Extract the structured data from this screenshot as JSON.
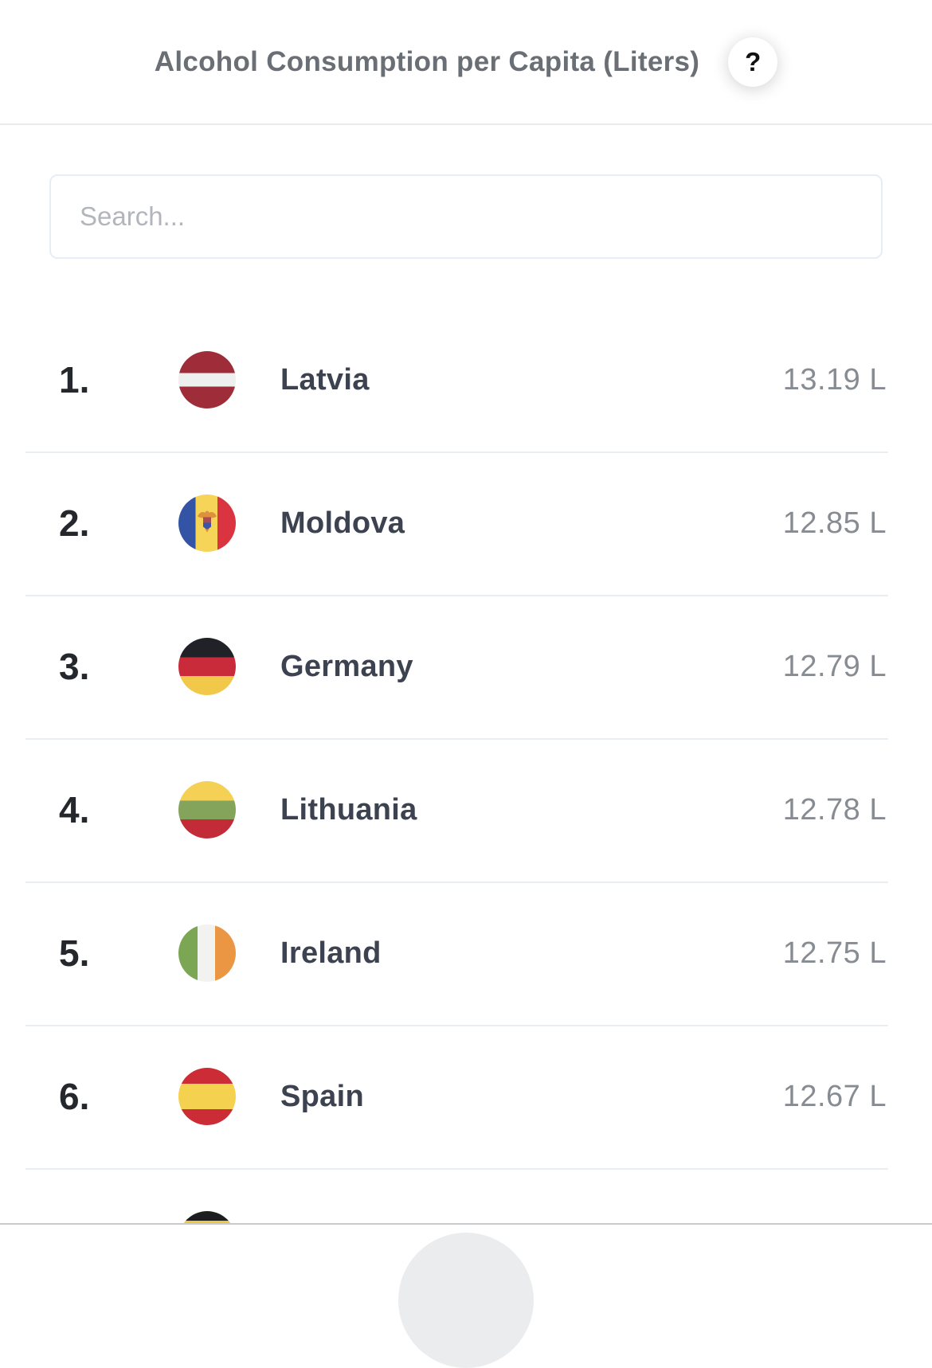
{
  "header": {
    "title": "Alcohol Consumption per Capita (Liters)",
    "help_label": "?"
  },
  "search": {
    "placeholder": "Search...",
    "value": ""
  },
  "rows": [
    {
      "rank": "1.",
      "country": "Latvia",
      "value": "13.19 L",
      "flag": {
        "name": "latvia-flag-icon",
        "type": "h",
        "stripes": [
          {
            "color": "#9e2d39",
            "to": 38
          },
          {
            "color": "#eef0ef",
            "to": 62
          },
          {
            "color": "#9e2d39",
            "to": 100
          }
        ]
      }
    },
    {
      "rank": "2.",
      "country": "Moldova",
      "value": "12.85 L",
      "flag": {
        "name": "moldova-flag-icon",
        "type": "v",
        "emblem": "moldova-eagle",
        "stripes": [
          {
            "color": "#3353a5",
            "to": 30
          },
          {
            "color": "#f6d457",
            "to": 68
          },
          {
            "color": "#d93440",
            "to": 100
          }
        ]
      }
    },
    {
      "rank": "3.",
      "country": "Germany",
      "value": "12.79 L",
      "flag": {
        "name": "germany-flag-icon",
        "type": "h",
        "stripes": [
          {
            "color": "#202227",
            "to": 34
          },
          {
            "color": "#ca2b3a",
            "to": 67
          },
          {
            "color": "#f2c84b",
            "to": 100
          }
        ]
      }
    },
    {
      "rank": "4.",
      "country": "Lithuania",
      "value": "12.78 L",
      "flag": {
        "name": "lithuania-flag-icon",
        "type": "h",
        "stripes": [
          {
            "color": "#f4d155",
            "to": 34
          },
          {
            "color": "#84a45c",
            "to": 67
          },
          {
            "color": "#c32b39",
            "to": 100
          }
        ]
      }
    },
    {
      "rank": "5.",
      "country": "Ireland",
      "value": "12.75 L",
      "flag": {
        "name": "ireland-flag-icon",
        "type": "v",
        "stripes": [
          {
            "color": "#7ba653",
            "to": 33
          },
          {
            "color": "#f2f3f0",
            "to": 64
          },
          {
            "color": "#eb9643",
            "to": 100
          }
        ]
      }
    },
    {
      "rank": "6.",
      "country": "Spain",
      "value": "12.67 L",
      "flag": {
        "name": "spain-flag-icon",
        "type": "h",
        "stripes": [
          {
            "color": "#cb2c35",
            "to": 28
          },
          {
            "color": "#f4d14e",
            "to": 72
          },
          {
            "color": "#cb2c35",
            "to": 100
          }
        ]
      }
    },
    {
      "rank": "",
      "country": "",
      "value": "",
      "flag": {
        "name": "uganda-flag-icon",
        "type": "h",
        "stripes": [
          {
            "color": "#1d1d1f",
            "to": 17
          },
          {
            "color": "#efc73e",
            "to": 33
          },
          {
            "color": "#d5323f",
            "to": 50
          },
          {
            "color": "#1d1d1f",
            "to": 67
          },
          {
            "color": "#efc73e",
            "to": 83
          },
          {
            "color": "#d5323f",
            "to": 100
          }
        ]
      }
    }
  ],
  "colors": {
    "title_text": "#6a6f75",
    "rank_text": "#24272c",
    "country_text": "#3c4250",
    "value_text": "#878c93",
    "row_divider": "#e9eef3",
    "search_border": "#e5edf6",
    "header_border": "#e9ebec",
    "bottom_line": "#c9cacc",
    "dome_fill": "#ebecee"
  }
}
